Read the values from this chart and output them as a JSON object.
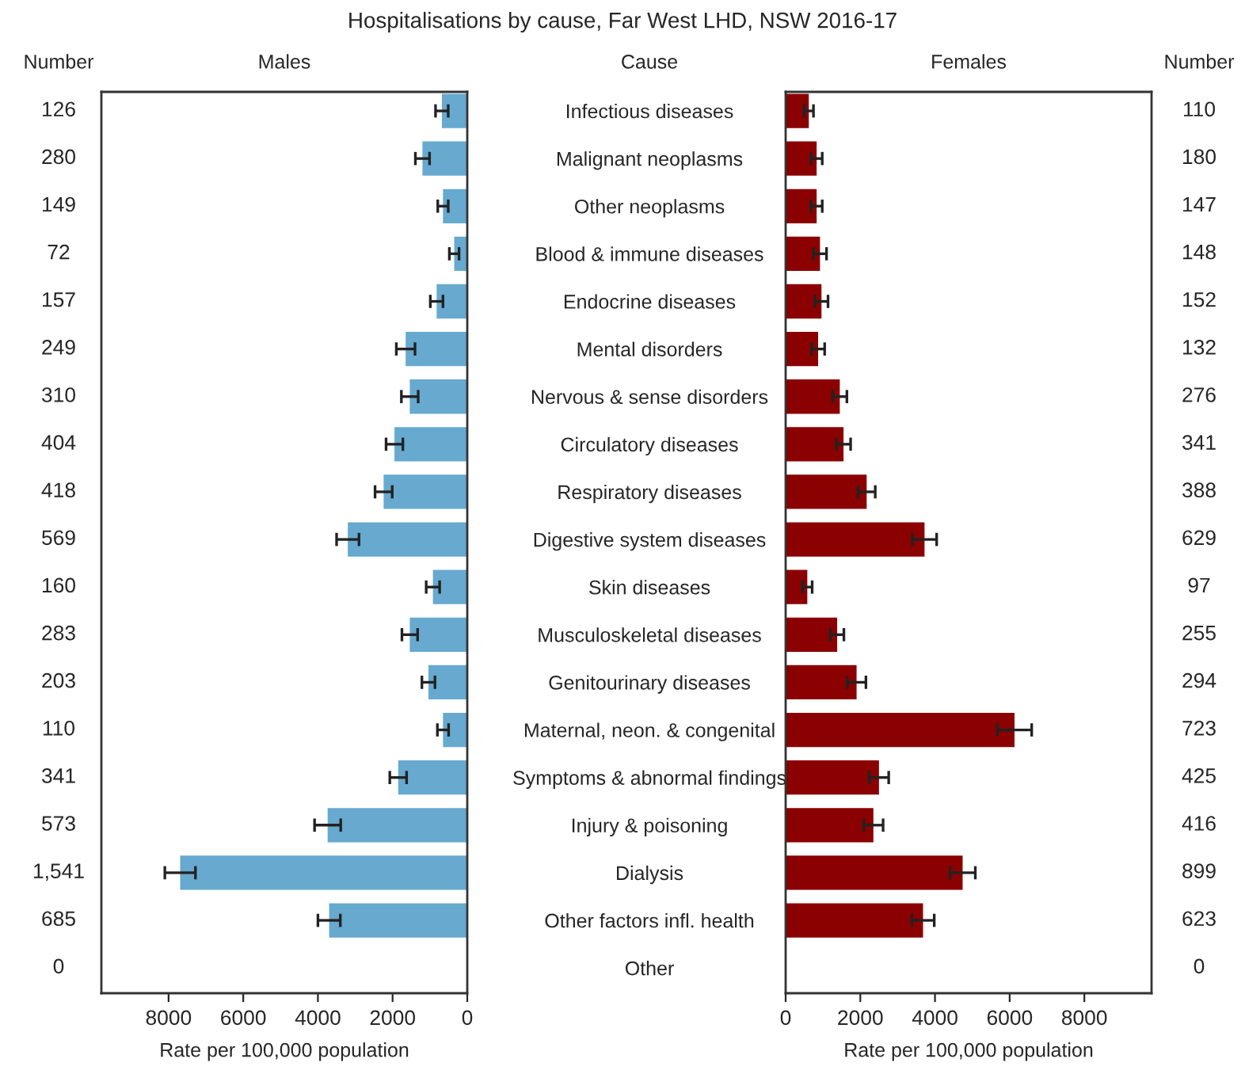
{
  "chart_data": [
    {
      "type": "bar",
      "orientation": "horizontal",
      "title": "Hospitalisations by cause, Far West LHD, NSW 2016-17",
      "subtitle": "Males",
      "xlabel": "Rate per 100,000 population",
      "categories": [
        null,
        null,
        null,
        null,
        null,
        null,
        null,
        null,
        null,
        null,
        null,
        null,
        null,
        null,
        null,
        null,
        null,
        null,
        null
      ],
      "values": [
        680,
        1200,
        650,
        350,
        820,
        1650,
        1540,
        1950,
        2240,
        3200,
        920,
        1540,
        1040,
        650,
        1850,
        3740,
        7690,
        3700,
        0
      ],
      "errors": [
        170,
        190,
        140,
        130,
        170,
        250,
        225,
        225,
        230,
        300,
        180,
        210,
        175,
        150,
        225,
        350,
        410,
        300,
        null
      ],
      "color": "#67a9cf",
      "xlim": [
        9800,
        0
      ],
      "xticks": [
        8000,
        6000,
        4000,
        2000,
        0
      ],
      "tick_labels": "x",
      "grid": false,
      "legend": false,
      "annotations": [
        "Number",
        "126",
        "280",
        "149",
        "72",
        "157",
        "249",
        "310",
        "404",
        "418",
        "569",
        "160",
        "283",
        "203",
        "110",
        "341",
        "573",
        "1,541",
        "685",
        "0"
      ]
    },
    {
      "type": "bar",
      "orientation": "horizontal",
      "subtitle": "Females",
      "ylabel": "Cause",
      "xlabel": "Rate per 100,000 population",
      "categories": [
        "Infectious diseases",
        "Malignant neoplasms",
        "Other neoplasms",
        "Blood & immune diseases",
        "Endocrine diseases",
        "Mental disorders",
        "Nervous & sense disorders",
        "Circulatory diseases",
        "Respiratory diseases",
        "Digestive system diseases",
        "Skin diseases",
        "Musculoskeletal diseases",
        "Genitourinary diseases",
        "Maternal, neon. & congenital",
        "Symptoms & abnormal findings",
        "Injury & poisoning",
        "Dialysis",
        "Other factors infl. health",
        "Other"
      ],
      "values": [
        620,
        830,
        830,
        920,
        960,
        870,
        1450,
        1550,
        2170,
        3720,
        580,
        1380,
        1900,
        6130,
        2500,
        2350,
        4740,
        3680,
        0
      ],
      "errors": [
        125,
        150,
        150,
        175,
        175,
        175,
        190,
        190,
        230,
        325,
        130,
        180,
        250,
        460,
        260,
        260,
        340,
        300,
        null
      ],
      "color": "#8b0000",
      "xlim": [
        0,
        9800
      ],
      "xticks": [
        0,
        2000,
        4000,
        6000,
        8000
      ],
      "grid": false,
      "legend": false,
      "annotations": [
        "Number",
        "110",
        "180",
        "147",
        "148",
        "152",
        "132",
        "276",
        "341",
        "388",
        "629",
        "97",
        "255",
        "294",
        "723",
        "425",
        "416",
        "899",
        "623",
        "0"
      ]
    }
  ]
}
